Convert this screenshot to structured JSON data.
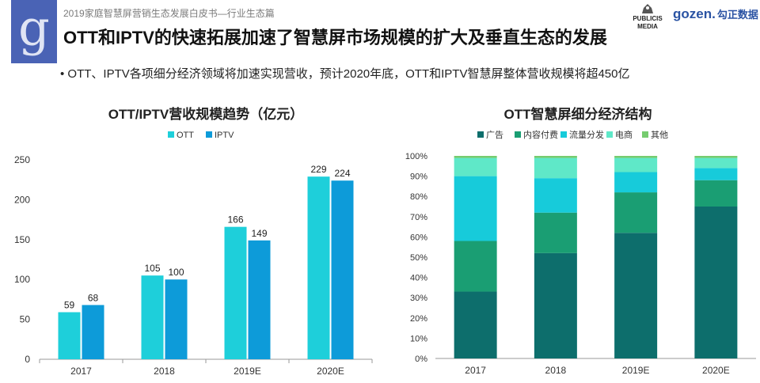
{
  "header": {
    "doc_title": "2019家庭智慧屏营销生态发展白皮书—行业生态篇",
    "main_title": "OTT和IPTV的快速拓展加速了智慧屏市场规模的扩大及垂直生态的发展",
    "bullet": "•  OTT、IPTV各项细分经济领域将加速实现营收，预计2020年底，OTT和IPTV智慧屏整体营收规模将超450亿",
    "logo_letter": "g",
    "publicis_line1": "PUBLICIS",
    "publicis_line2": "MEDIA",
    "gozen_en": "gozen.",
    "gozen_cn": "勾正数据"
  },
  "chart_data": [
    {
      "type": "bar",
      "title": "OTT/IPTV营收规模趋势（亿元）",
      "categories": [
        "2017",
        "2018",
        "2019E",
        "2020E"
      ],
      "series": [
        {
          "name": "OTT",
          "values": [
            59,
            105,
            166,
            229
          ],
          "color": "#1ecfda"
        },
        {
          "name": "IPTV",
          "values": [
            68,
            100,
            149,
            224
          ],
          "color": "#0d9bd9"
        }
      ],
      "yticks": [
        "0",
        "50",
        "100",
        "150",
        "200",
        "250"
      ],
      "ylim": [
        0,
        250
      ],
      "grid": false,
      "legend": "top-center"
    },
    {
      "type": "bar",
      "stacked": true,
      "title": "OTT智慧屏细分经济结构",
      "categories": [
        "2017",
        "2018",
        "2019E",
        "2020E"
      ],
      "series": [
        {
          "name": "广告",
          "values": [
            33,
            52,
            62,
            75
          ],
          "color": "#0d6e6c"
        },
        {
          "name": "内容付费",
          "values": [
            25,
            20,
            20,
            13
          ],
          "color": "#1a9e73"
        },
        {
          "name": "流量分发",
          "values": [
            32,
            17,
            10,
            6
          ],
          "color": "#17cbda"
        },
        {
          "name": "电商",
          "values": [
            9,
            10,
            7,
            5
          ],
          "color": "#5fe8c8"
        },
        {
          "name": "其他",
          "values": [
            1,
            1,
            1,
            1
          ],
          "color": "#76cc6f"
        }
      ],
      "yticks": [
        "0%",
        "10%",
        "20%",
        "30%",
        "40%",
        "50%",
        "60%",
        "70%",
        "80%",
        "90%",
        "100%"
      ],
      "ylim": [
        0,
        100
      ],
      "grid": false,
      "legend": "top-center"
    }
  ]
}
